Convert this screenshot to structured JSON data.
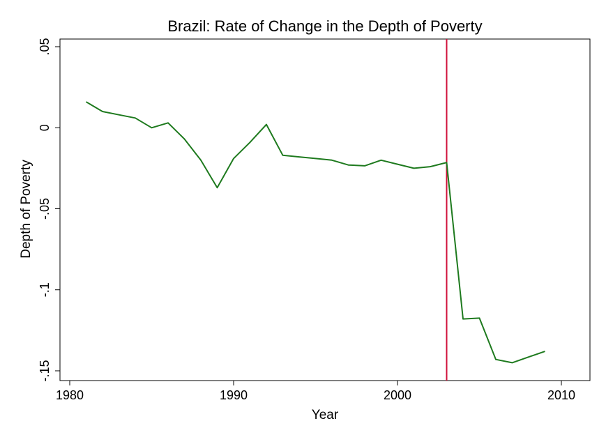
{
  "chart_data": {
    "type": "line",
    "title": "Brazil: Rate of Change in the Depth of Poverty",
    "xlabel": "Year",
    "ylabel": "Depth of Poverty",
    "xlim": [
      1980,
      2010
    ],
    "ylim": [
      -0.15,
      0.05
    ],
    "x_ticks": [
      {
        "value": 1980,
        "label": "1980"
      },
      {
        "value": 1990,
        "label": "1990"
      },
      {
        "value": 2000,
        "label": "2000"
      },
      {
        "value": 2010,
        "label": "2010"
      }
    ],
    "y_ticks": [
      {
        "value": 0.05,
        "label": ".05"
      },
      {
        "value": 0,
        "label": "0"
      },
      {
        "value": -0.05,
        "label": "-.05"
      },
      {
        "value": -0.1,
        "label": "-.1"
      },
      {
        "value": -0.15,
        "label": "-.15"
      }
    ],
    "grid": false,
    "series": [
      {
        "color": "#1e7a1e",
        "x": [
          1981,
          1982,
          1983,
          1984,
          1985,
          1986,
          1987,
          1988,
          1989,
          1990,
          1991,
          1992,
          1993,
          1994,
          1995,
          1996,
          1997,
          1998,
          1999,
          2000,
          2001,
          2002,
          2003,
          2004,
          2005,
          2006,
          2007,
          2008,
          2009
        ],
        "y": [
          0.016,
          0.01,
          0.008,
          0.006,
          0.0,
          0.003,
          -0.007,
          -0.02,
          -0.037,
          -0.019,
          -0.009,
          0.002,
          -0.017,
          -0.018,
          -0.019,
          -0.02,
          -0.023,
          -0.0235,
          -0.02,
          -0.0225,
          -0.025,
          -0.024,
          -0.0215,
          -0.118,
          -0.1175,
          -0.143,
          -0.145,
          -0.1415,
          -0.138
        ]
      }
    ],
    "reference_lines": [
      {
        "axis": "x",
        "value": 2003,
        "color": "#d0103a"
      }
    ]
  }
}
